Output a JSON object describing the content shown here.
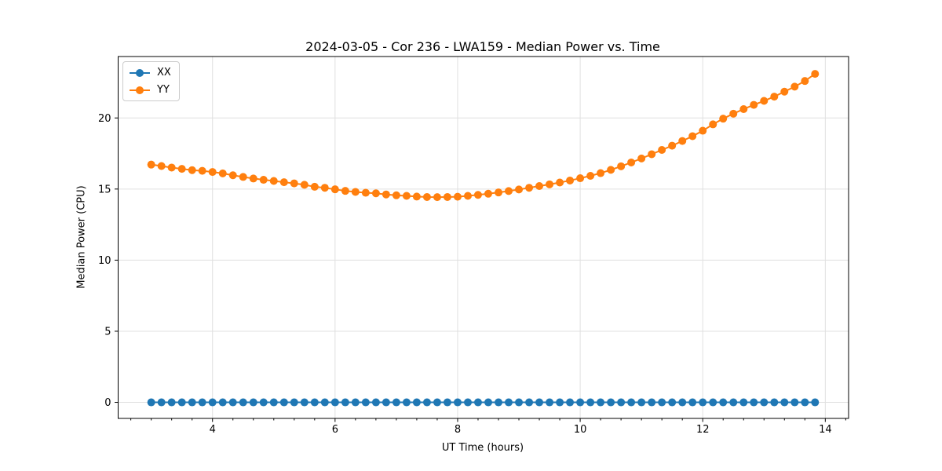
{
  "chart_data": {
    "type": "line",
    "title": "2024-03-05 - Cor 236 - LWA159 - Median Power vs. Time",
    "xlabel": "UT Time (hours)",
    "ylabel": "Median Power (CPU)",
    "xlim": [
      2.46,
      14.38
    ],
    "ylim": [
      -1.13,
      24.32
    ],
    "x_ticks": [
      4,
      6,
      8,
      10,
      12,
      14
    ],
    "y_ticks": [
      0,
      5,
      10,
      15,
      20
    ],
    "x_minor_step": 0.33333,
    "grid": true,
    "grid_color": "#e0e0e0",
    "background": "#ffffff",
    "legend_position": "upper-left",
    "x": [
      3.0,
      3.167,
      3.333,
      3.5,
      3.667,
      3.833,
      4.0,
      4.167,
      4.333,
      4.5,
      4.667,
      4.833,
      5.0,
      5.167,
      5.333,
      5.5,
      5.667,
      5.833,
      6.0,
      6.167,
      6.333,
      6.5,
      6.667,
      6.833,
      7.0,
      7.167,
      7.333,
      7.5,
      7.667,
      7.833,
      8.0,
      8.167,
      8.333,
      8.5,
      8.667,
      8.833,
      9.0,
      9.167,
      9.333,
      9.5,
      9.667,
      9.833,
      10.0,
      10.167,
      10.333,
      10.5,
      10.667,
      10.833,
      11.0,
      11.167,
      11.333,
      11.5,
      11.667,
      11.833,
      12.0,
      12.167,
      12.333,
      12.5,
      12.667,
      12.833,
      13.0,
      13.167,
      13.333,
      13.5,
      13.667,
      13.833
    ],
    "series": [
      {
        "name": "XX",
        "color": "#1f77b4",
        "values": [
          0,
          0,
          0,
          0,
          0,
          0,
          0,
          0,
          0,
          0,
          0,
          0,
          0,
          0,
          0,
          0,
          0,
          0,
          0,
          0,
          0,
          0,
          0,
          0,
          0,
          0,
          0,
          0,
          0,
          0,
          0,
          0,
          0,
          0,
          0,
          0,
          0,
          0,
          0,
          0,
          0,
          0,
          0,
          0,
          0,
          0,
          0,
          0,
          0,
          0,
          0,
          0,
          0,
          0,
          0,
          0,
          0,
          0,
          0,
          0,
          0,
          0,
          0,
          0,
          0,
          0
        ]
      },
      {
        "name": "YY",
        "color": "#ff7f0e",
        "values": [
          16.72,
          16.62,
          16.51,
          16.42,
          16.33,
          16.28,
          16.2,
          16.1,
          15.97,
          15.85,
          15.74,
          15.65,
          15.57,
          15.48,
          15.4,
          15.3,
          15.16,
          15.09,
          14.98,
          14.87,
          14.8,
          14.74,
          14.7,
          14.62,
          14.56,
          14.52,
          14.47,
          14.44,
          14.43,
          14.44,
          14.46,
          14.52,
          14.59,
          14.67,
          14.76,
          14.86,
          14.97,
          15.09,
          15.21,
          15.33,
          15.46,
          15.6,
          15.76,
          15.93,
          16.12,
          16.35,
          16.6,
          16.87,
          17.15,
          17.45,
          17.75,
          18.05,
          18.38,
          18.72,
          19.1,
          19.55,
          19.95,
          20.3,
          20.62,
          20.92,
          21.2,
          21.5,
          21.85,
          22.2,
          22.6,
          23.1
        ]
      }
    ]
  }
}
